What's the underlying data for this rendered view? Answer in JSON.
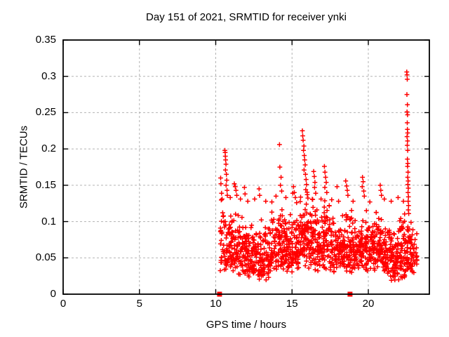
{
  "chart_data": {
    "type": "scatter",
    "title": "Day 151 of 2021, SRMTID for receiver ynki",
    "xlabel": "GPS time / hours",
    "ylabel": "SRMTID / TECUs",
    "xlim": [
      0,
      24
    ],
    "ylim": [
      0,
      0.35
    ],
    "xticks": [
      0,
      5,
      10,
      15,
      20
    ],
    "yticks": [
      0,
      0.05,
      0.1,
      0.15,
      0.2,
      0.25,
      0.3,
      0.35
    ],
    "grid": {
      "style": "dashed",
      "color": "#b3b3b3",
      "on": true
    },
    "legend": "none",
    "series": [
      {
        "name": "srmtid-scatter",
        "marker": "plus",
        "color": "#ff0000",
        "x_data_range": [
          10.3,
          23.2
        ],
        "outlier_points": [
          [
            10.32,
            0.16
          ],
          [
            10.34,
            0.152
          ],
          [
            10.38,
            0.139
          ],
          [
            10.42,
            0.131
          ],
          [
            10.6,
            0.198
          ],
          [
            10.62,
            0.195
          ],
          [
            10.63,
            0.19
          ],
          [
            10.65,
            0.185
          ],
          [
            10.67,
            0.179
          ],
          [
            10.64,
            0.171
          ],
          [
            10.7,
            0.165
          ],
          [
            10.72,
            0.157
          ],
          [
            10.68,
            0.15
          ],
          [
            10.74,
            0.143
          ],
          [
            10.76,
            0.136
          ],
          [
            10.95,
            0.133
          ],
          [
            11.22,
            0.152
          ],
          [
            11.28,
            0.148
          ],
          [
            11.33,
            0.143
          ],
          [
            11.38,
            0.136
          ],
          [
            11.62,
            0.131
          ],
          [
            11.88,
            0.147
          ],
          [
            11.92,
            0.138
          ],
          [
            12.1,
            0.128
          ],
          [
            12.55,
            0.131
          ],
          [
            12.84,
            0.145
          ],
          [
            12.88,
            0.136
          ],
          [
            13.28,
            0.128
          ],
          [
            13.68,
            0.127
          ],
          [
            13.95,
            0.135
          ],
          [
            14.18,
            0.206
          ],
          [
            14.2,
            0.175
          ],
          [
            14.28,
            0.161
          ],
          [
            14.24,
            0.15
          ],
          [
            14.32,
            0.142
          ],
          [
            14.6,
            0.133
          ],
          [
            15.05,
            0.139
          ],
          [
            15.1,
            0.148
          ],
          [
            15.15,
            0.14
          ],
          [
            15.22,
            0.133
          ],
          [
            15.3,
            0.126
          ],
          [
            15.68,
            0.225
          ],
          [
            15.7,
            0.218
          ],
          [
            15.73,
            0.212
          ],
          [
            15.78,
            0.204
          ],
          [
            15.75,
            0.198
          ],
          [
            15.8,
            0.191
          ],
          [
            15.83,
            0.185
          ],
          [
            15.86,
            0.178
          ],
          [
            15.79,
            0.171
          ],
          [
            15.88,
            0.165
          ],
          [
            15.92,
            0.158
          ],
          [
            15.95,
            0.151
          ],
          [
            15.9,
            0.144
          ],
          [
            16.0,
            0.137
          ],
          [
            16.42,
            0.169
          ],
          [
            16.46,
            0.162
          ],
          [
            16.5,
            0.154
          ],
          [
            16.48,
            0.147
          ],
          [
            16.55,
            0.139
          ],
          [
            16.9,
            0.131
          ],
          [
            17.12,
            0.176
          ],
          [
            17.16,
            0.168
          ],
          [
            17.2,
            0.161
          ],
          [
            17.24,
            0.154
          ],
          [
            17.15,
            0.147
          ],
          [
            17.28,
            0.14
          ],
          [
            17.6,
            0.13
          ],
          [
            17.95,
            0.148
          ],
          [
            18.05,
            0.128
          ],
          [
            18.52,
            0.156
          ],
          [
            18.58,
            0.149
          ],
          [
            18.62,
            0.143
          ],
          [
            18.66,
            0.136
          ],
          [
            19.0,
            0.128
          ],
          [
            19.62,
            0.161
          ],
          [
            19.66,
            0.155
          ],
          [
            19.6,
            0.148
          ],
          [
            19.7,
            0.142
          ],
          [
            19.74,
            0.135
          ],
          [
            20.1,
            0.127
          ],
          [
            20.78,
            0.15
          ],
          [
            20.82,
            0.143
          ],
          [
            20.86,
            0.136
          ],
          [
            21.05,
            0.131
          ],
          [
            21.5,
            0.128
          ],
          [
            21.95,
            0.133
          ],
          [
            22.3,
            0.128
          ],
          [
            22.52,
            0.306
          ],
          [
            22.54,
            0.302
          ],
          [
            22.55,
            0.296
          ],
          [
            22.53,
            0.275
          ],
          [
            22.56,
            0.261
          ],
          [
            22.54,
            0.251
          ],
          [
            22.57,
            0.247
          ],
          [
            22.55,
            0.236
          ],
          [
            22.56,
            0.227
          ],
          [
            22.58,
            0.222
          ],
          [
            22.54,
            0.217
          ],
          [
            22.57,
            0.211
          ],
          [
            22.55,
            0.205
          ],
          [
            22.58,
            0.198
          ],
          [
            22.56,
            0.186
          ],
          [
            22.59,
            0.18
          ],
          [
            22.57,
            0.176
          ],
          [
            22.6,
            0.168
          ],
          [
            22.58,
            0.161
          ],
          [
            22.61,
            0.156
          ],
          [
            22.59,
            0.151
          ],
          [
            22.62,
            0.146
          ],
          [
            22.6,
            0.14
          ],
          [
            22.63,
            0.134
          ],
          [
            22.61,
            0.128
          ],
          [
            22.64,
            0.122
          ],
          [
            22.62,
            0.116
          ],
          [
            22.65,
            0.111
          ]
        ],
        "band_bins": [
          [
            10.28,
            10.5,
            20,
            0.032,
            0.15
          ],
          [
            10.5,
            11.0,
            48,
            0.03,
            0.125
          ],
          [
            11.0,
            11.5,
            52,
            0.026,
            0.118
          ],
          [
            11.5,
            12.0,
            55,
            0.024,
            0.12
          ],
          [
            12.0,
            12.5,
            55,
            0.02,
            0.105
          ],
          [
            12.5,
            13.0,
            50,
            0.018,
            0.112
          ],
          [
            13.0,
            13.5,
            46,
            0.018,
            0.1
          ],
          [
            13.5,
            14.0,
            50,
            0.028,
            0.118
          ],
          [
            14.0,
            14.5,
            55,
            0.032,
            0.128
          ],
          [
            14.5,
            15.0,
            55,
            0.03,
            0.12
          ],
          [
            15.0,
            15.5,
            56,
            0.034,
            0.132
          ],
          [
            15.5,
            16.0,
            60,
            0.038,
            0.155
          ],
          [
            16.0,
            16.5,
            56,
            0.034,
            0.142
          ],
          [
            16.5,
            17.0,
            55,
            0.03,
            0.128
          ],
          [
            17.0,
            17.5,
            56,
            0.034,
            0.145
          ],
          [
            17.5,
            18.0,
            50,
            0.03,
            0.125
          ],
          [
            18.0,
            18.5,
            55,
            0.034,
            0.115
          ],
          [
            18.5,
            19.0,
            55,
            0.03,
            0.122
          ],
          [
            19.0,
            19.5,
            55,
            0.034,
            0.108
          ],
          [
            19.5,
            20.0,
            56,
            0.03,
            0.125
          ],
          [
            20.0,
            20.5,
            50,
            0.03,
            0.108
          ],
          [
            20.5,
            21.0,
            55,
            0.034,
            0.118
          ],
          [
            21.0,
            21.5,
            55,
            0.022,
            0.102
          ],
          [
            21.5,
            22.0,
            55,
            0.016,
            0.105
          ],
          [
            22.0,
            22.5,
            52,
            0.02,
            0.115
          ],
          [
            22.5,
            23.0,
            55,
            0.018,
            0.108
          ],
          [
            23.0,
            23.2,
            14,
            0.038,
            0.092
          ]
        ],
        "band_seed": 151
      },
      {
        "name": "event-flag-squares",
        "marker": "filled-square",
        "color": "#ff0000",
        "points": [
          [
            10.25,
            0
          ],
          [
            18.8,
            0
          ]
        ]
      }
    ]
  }
}
